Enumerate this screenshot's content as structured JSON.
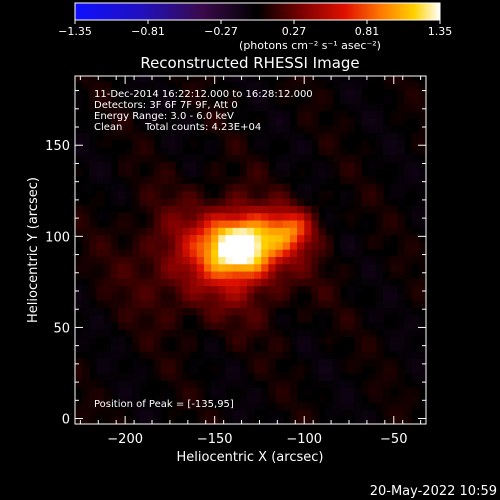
{
  "colorbar": {
    "ticks": [
      "-1.35",
      "-0.81",
      "-0.27",
      "0.27",
      "0.81",
      "1.35"
    ],
    "unit_label": "(photons cm⁻² s⁻¹ asec⁻²)"
  },
  "chart_data": {
    "type": "heatmap",
    "title": "Reconstructed RHESSI Image",
    "xlabel": "Heliocentric X (arcsec)",
    "ylabel": "Heliocentric Y (arcsec)",
    "xlim": [
      -228,
      -32
    ],
    "ylim": [
      -3,
      188
    ],
    "xticks": [
      -200,
      -150,
      -100,
      -50
    ],
    "yticks": [
      0,
      50,
      100,
      150
    ],
    "color_range": [
      -1.35,
      1.35
    ],
    "colormap": "black-blue-purple-red-orange-yellow-white",
    "sources": [
      {
        "x": -135,
        "y": 95,
        "peak": 1.35,
        "sigma_x": 14,
        "sigma_y": 11
      },
      {
        "x": -107,
        "y": 104,
        "peak": 0.65,
        "sigma_x": 9,
        "sigma_y": 8
      },
      {
        "x": -150,
        "y": 88,
        "peak": 0.45,
        "sigma_x": 30,
        "sigma_y": 22
      }
    ],
    "peak_position": [
      -135,
      95
    ]
  },
  "annotations": {
    "time_range": "11-Dec-2014 16:22:12.000 to 16:28:12.000",
    "detectors": "Detectors: 3F 6F 7F 9F, Att 0",
    "energy": "Energy Range: 3.0 - 6.0 keV",
    "method": "Clean",
    "total_counts": "Total counts: 4.23E+04",
    "peak_text": "Position of Peak = [-135,95]"
  },
  "footer": {
    "timestamp": "20-May-2022 10:59"
  }
}
